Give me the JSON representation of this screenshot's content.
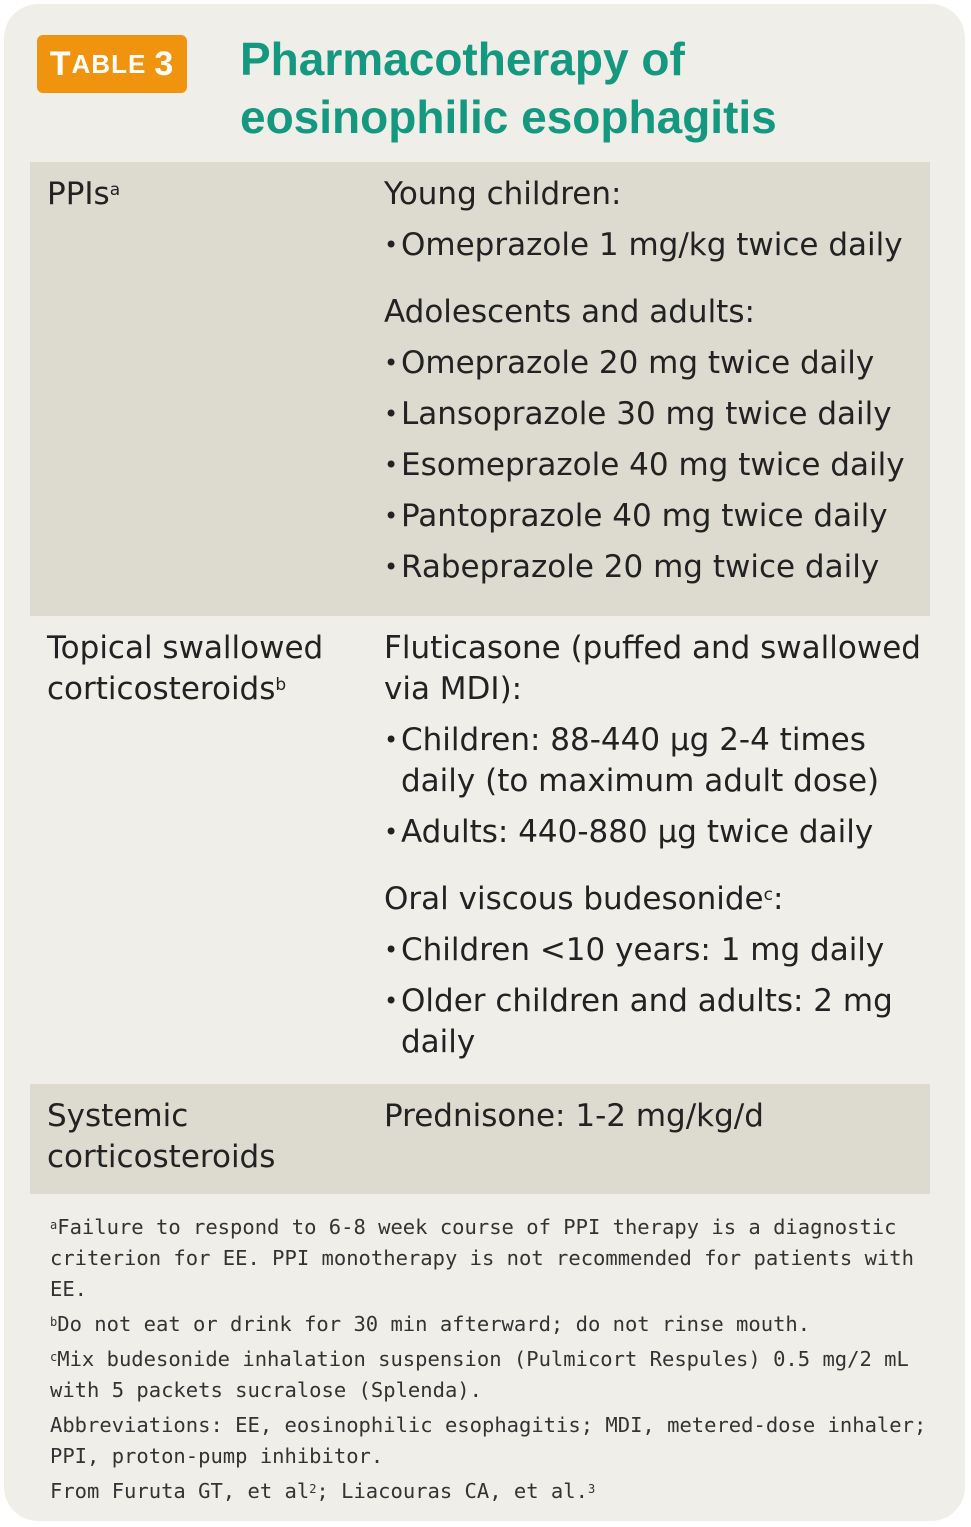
{
  "badge": {
    "first": "T",
    "rest": "able",
    "num": "3"
  },
  "title": {
    "line1": "Pharmacotherapy of",
    "line2": "eosinophilic esophagitis"
  },
  "rows": [
    {
      "label": "PPIs",
      "label_sup": "a",
      "groups": [
        {
          "heading": "Young children:",
          "items": [
            "Omeprazole 1 mg/kg twice daily"
          ]
        },
        {
          "heading": "Adolescents and adults:",
          "items": [
            "Omeprazole 20 mg twice daily",
            "Lansoprazole 30 mg twice daily",
            "Esomeprazole 40 mg twice daily",
            "Pantoprazole 40 mg twice daily",
            "Rabeprazole 20 mg twice daily"
          ]
        }
      ]
    },
    {
      "label_line1": "Topical swallowed",
      "label_line2": "corticosteroids",
      "label_sup": "b",
      "groups": [
        {
          "heading": "Fluticasone (puffed and swallowed via MDI):",
          "items": [
            "Children: 88-440 µg 2-4 times daily (to maximum adult dose)",
            "Adults: 440-880 µg twice daily"
          ]
        },
        {
          "heading_main": "Oral viscous budesonide",
          "heading_sup": "c",
          "heading_tail": ":",
          "items": [
            "Children <10 years: 1 mg daily",
            "Older children and adults: 2 mg daily"
          ]
        }
      ]
    },
    {
      "label_line1": "Systemic",
      "label_line2": "corticosteroids",
      "content": "Prednisone: 1-2 mg/kg/d"
    }
  ],
  "footnotes": {
    "a_mark": "a",
    "a_text": "Failure to respond to 6-8 week course of PPI therapy is a diagnostic criterion for EE. PPI monotherapy is not recommended for patients with EE.",
    "b_mark": "b",
    "b_text": "Do not eat or drink for 30 min afterward; do not rinse mouth.",
    "c_mark": "c",
    "c_text": "Mix budesonide inhalation suspension (Pulmicort Respules) 0.5 mg/2 mL with 5 packets sucralose (Splenda).",
    "abbrev": "Abbreviations: EE, eosinophilic esophagitis; MDI, metered-dose inhaler; PPI, proton-pump inhibitor.",
    "source_a": "From Furuta GT, et al",
    "source_a_sup": "2",
    "source_b": "; Liacouras CA, et al.",
    "source_b_sup": "3"
  }
}
